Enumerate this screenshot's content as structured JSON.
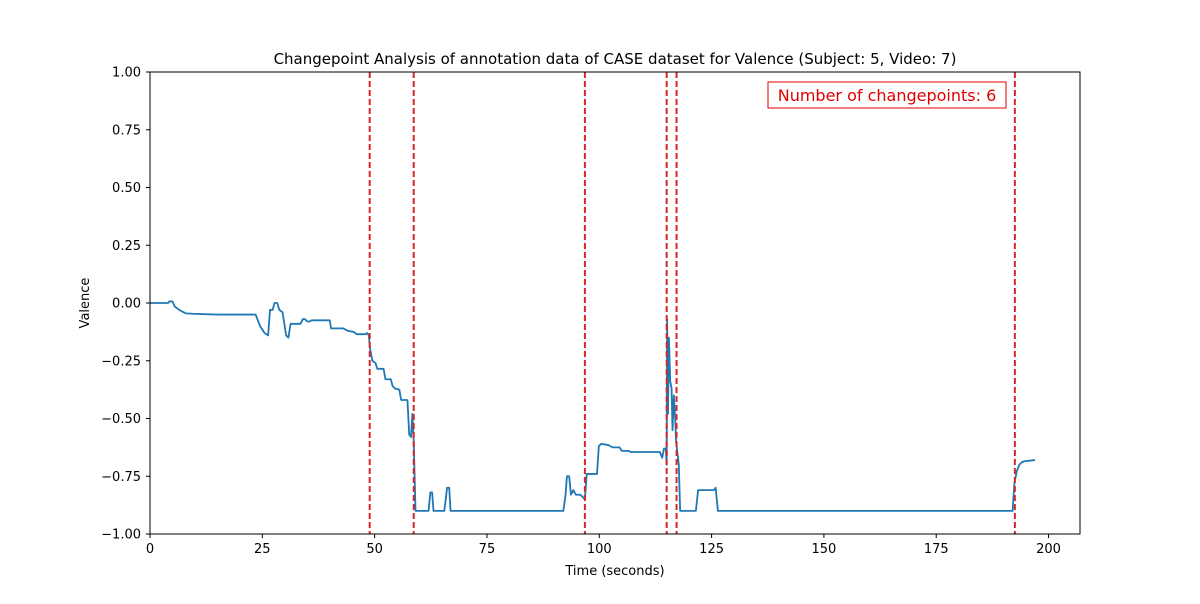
{
  "chart_data": {
    "type": "line",
    "title": "Changepoint Analysis of annotation data of CASE dataset for Valence (Subject: 5, Video: 7)",
    "xlabel": "Time (seconds)",
    "ylabel": "Valence",
    "xlim": [
      0,
      207
    ],
    "ylim": [
      -1.0,
      1.0
    ],
    "x_ticks": [
      0,
      25,
      50,
      75,
      100,
      125,
      150,
      175,
      200
    ],
    "y_ticks": [
      -1.0,
      -0.75,
      -0.5,
      -0.25,
      0.0,
      0.25,
      0.5,
      0.75,
      1.0
    ],
    "x_tick_labels": [
      "0",
      "25",
      "50",
      "75",
      "100",
      "125",
      "150",
      "175",
      "200"
    ],
    "y_tick_labels": [
      "−1.00",
      "−0.75",
      "−0.50",
      "−0.25",
      "0.00",
      "0.25",
      "0.50",
      "0.75",
      "1.00"
    ],
    "grid": false,
    "series": [
      {
        "color": "#1f77b4",
        "points": [
          [
            0,
            0.0
          ],
          [
            4,
            0.0
          ],
          [
            4.3,
            0.007
          ],
          [
            5,
            0.007
          ],
          [
            5.5,
            -0.015
          ],
          [
            6.5,
            -0.03
          ],
          [
            8,
            -0.045
          ],
          [
            10,
            -0.047
          ],
          [
            15,
            -0.05
          ],
          [
            20,
            -0.05
          ],
          [
            23.5,
            -0.05
          ],
          [
            24.5,
            -0.1
          ],
          [
            25.5,
            -0.13
          ],
          [
            26.3,
            -0.14
          ],
          [
            26.7,
            -0.03
          ],
          [
            27.3,
            -0.03
          ],
          [
            27.7,
            0.0
          ],
          [
            28.3,
            0.0
          ],
          [
            28.8,
            -0.03
          ],
          [
            29.5,
            -0.04
          ],
          [
            30.3,
            -0.14
          ],
          [
            30.8,
            -0.15
          ],
          [
            31.3,
            -0.09
          ],
          [
            33.5,
            -0.09
          ],
          [
            34,
            -0.07
          ],
          [
            34.5,
            -0.07
          ],
          [
            35,
            -0.08
          ],
          [
            35.5,
            -0.08
          ],
          [
            36,
            -0.075
          ],
          [
            40,
            -0.075
          ],
          [
            40.3,
            -0.11
          ],
          [
            43,
            -0.11
          ],
          [
            44,
            -0.12
          ],
          [
            45.3,
            -0.125
          ],
          [
            46,
            -0.135
          ],
          [
            48,
            -0.135
          ],
          [
            48.3,
            -0.13
          ],
          [
            48.7,
            -0.14
          ],
          [
            49,
            -0.2
          ],
          [
            49.5,
            -0.25
          ],
          [
            50.2,
            -0.26
          ],
          [
            50.6,
            -0.285
          ],
          [
            52,
            -0.285
          ],
          [
            52.4,
            -0.33
          ],
          [
            53.6,
            -0.33
          ],
          [
            54,
            -0.36
          ],
          [
            54.5,
            -0.37
          ],
          [
            55.5,
            -0.375
          ],
          [
            55.9,
            -0.42
          ],
          [
            57.3,
            -0.42
          ],
          [
            57.7,
            -0.57
          ],
          [
            58.1,
            -0.58
          ],
          [
            58.4,
            -0.48
          ],
          [
            58.7,
            -0.6
          ],
          [
            59.1,
            -0.9
          ],
          [
            62,
            -0.9
          ],
          [
            62.4,
            -0.82
          ],
          [
            62.8,
            -0.82
          ],
          [
            63.1,
            -0.9
          ],
          [
            65.5,
            -0.9
          ],
          [
            65.9,
            -0.84
          ],
          [
            66.1,
            -0.8
          ],
          [
            66.6,
            -0.8
          ],
          [
            66.9,
            -0.9
          ],
          [
            92,
            -0.9
          ],
          [
            92.5,
            -0.83
          ],
          [
            92.8,
            -0.75
          ],
          [
            93.3,
            -0.75
          ],
          [
            93.7,
            -0.83
          ],
          [
            94.2,
            -0.81
          ],
          [
            94.8,
            -0.83
          ],
          [
            95.8,
            -0.83
          ],
          [
            96.3,
            -0.84
          ],
          [
            96.8,
            -0.85
          ],
          [
            97.2,
            -0.74
          ],
          [
            99.5,
            -0.74
          ],
          [
            99.9,
            -0.62
          ],
          [
            100.4,
            -0.61
          ],
          [
            102,
            -0.615
          ],
          [
            103,
            -0.625
          ],
          [
            104.5,
            -0.625
          ],
          [
            105,
            -0.64
          ],
          [
            106.5,
            -0.64
          ],
          [
            107,
            -0.645
          ],
          [
            113.5,
            -0.645
          ],
          [
            114,
            -0.67
          ],
          [
            114.4,
            -0.63
          ],
          [
            114.8,
            -0.63
          ],
          [
            115,
            -0.7
          ],
          [
            115.1,
            -0.07
          ],
          [
            115.3,
            -0.48
          ],
          [
            115.5,
            -0.15
          ],
          [
            115.8,
            -0.34
          ],
          [
            116.1,
            -0.37
          ],
          [
            116.3,
            -0.55
          ],
          [
            116.6,
            -0.4
          ],
          [
            116.9,
            -0.5
          ],
          [
            117.1,
            -0.6
          ],
          [
            117.4,
            -0.65
          ],
          [
            117.7,
            -0.7
          ],
          [
            118,
            -0.9
          ],
          [
            121.5,
            -0.9
          ],
          [
            122,
            -0.81
          ],
          [
            125.5,
            -0.81
          ],
          [
            125.9,
            -0.8
          ],
          [
            126.4,
            -0.9
          ],
          [
            192,
            -0.9
          ],
          [
            192.4,
            -0.78
          ],
          [
            192.9,
            -0.73
          ],
          [
            193.5,
            -0.7
          ],
          [
            194,
            -0.69
          ],
          [
            194.6,
            -0.685
          ],
          [
            197,
            -0.68
          ]
        ]
      }
    ],
    "changepoints": [
      48.9,
      58.7,
      96.8,
      115.0,
      117.2,
      192.5
    ],
    "changepoint_style": {
      "color": "#d62728",
      "dash": "dashed"
    },
    "annotations": [
      {
        "text": "Number of changepoints: 6",
        "placement": "top-right",
        "color": "#e00000"
      }
    ]
  }
}
